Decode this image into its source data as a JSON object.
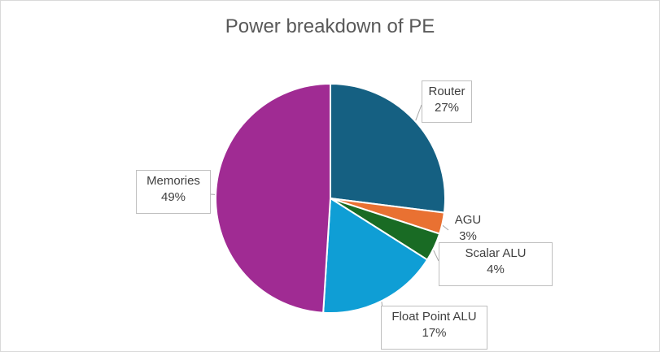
{
  "chart_data": {
    "type": "pie",
    "title": "Power breakdown of PE",
    "slices": [
      {
        "label": "Router",
        "value": 27,
        "value_label": "27%",
        "color": "#156082"
      },
      {
        "label": "AGU",
        "value": 3,
        "value_label": "3%",
        "color": "#e97132"
      },
      {
        "label": "Scalar ALU",
        "value": 4,
        "value_label": "4%",
        "color": "#196b24"
      },
      {
        "label": "Float Point ALU",
        "value": 17,
        "value_label": "17%",
        "color": "#0f9ed5"
      },
      {
        "label": "Memories",
        "value": 49,
        "value_label": "49%",
        "color": "#a02b93"
      }
    ],
    "start_angle_deg": 0,
    "direction": "clockwise",
    "legend": "none",
    "data_labels": "callout"
  }
}
